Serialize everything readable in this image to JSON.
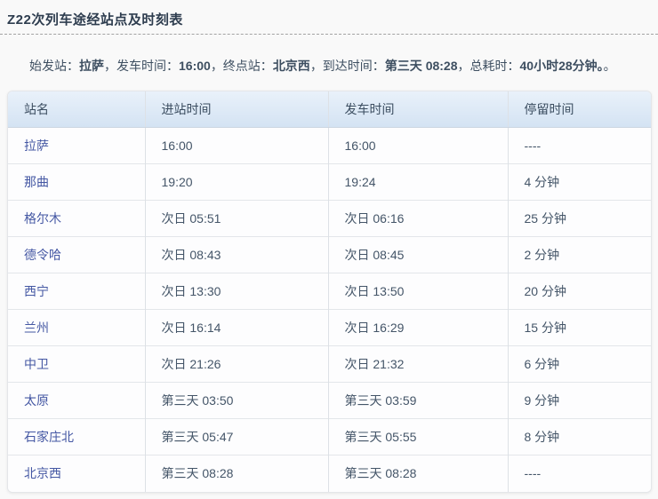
{
  "page": {
    "title": "Z22次列车途经站点及时刻表"
  },
  "summary": {
    "segments": [
      {
        "text": "始发站：",
        "bold": false
      },
      {
        "text": "拉萨",
        "bold": true
      },
      {
        "text": "，发车时间：",
        "bold": false
      },
      {
        "text": "16:00",
        "bold": true
      },
      {
        "text": "，终点站：",
        "bold": false
      },
      {
        "text": "北京西",
        "bold": true
      },
      {
        "text": "，到达时间：",
        "bold": false
      },
      {
        "text": "第三天 08:28",
        "bold": true
      },
      {
        "text": "，总耗时：",
        "bold": false
      },
      {
        "text": "40小时28分钟。",
        "bold": true
      },
      {
        "text": "。",
        "bold": false
      }
    ]
  },
  "table": {
    "columns": [
      "站名",
      "进站时间",
      "发车时间",
      "停留时间"
    ],
    "rows": [
      [
        "拉萨",
        "16:00",
        "16:00",
        "----"
      ],
      [
        "那曲",
        "19:20",
        "19:24",
        "4 分钟"
      ],
      [
        "格尔木",
        "次日 05:51",
        "次日 06:16",
        "25 分钟"
      ],
      [
        "德令哈",
        "次日 08:43",
        "次日 08:45",
        "2 分钟"
      ],
      [
        "西宁",
        "次日 13:30",
        "次日 13:50",
        "20 分钟"
      ],
      [
        "兰州",
        "次日 16:14",
        "次日 16:29",
        "15 分钟"
      ],
      [
        "中卫",
        "次日 21:26",
        "次日 21:32",
        "6 分钟"
      ],
      [
        "太原",
        "第三天 03:50",
        "第三天 03:59",
        "9 分钟"
      ],
      [
        "石家庄北",
        "第三天 05:47",
        "第三天 05:55",
        "8 分钟"
      ],
      [
        "北京西",
        "第三天 08:28",
        "第三天 08:28",
        "----"
      ]
    ]
  },
  "colors": {
    "page_background": "#f9f9f9",
    "title_text": "#2e3d4f",
    "summary_text": "#3e4f61",
    "header_background_top": "#e9f1fa",
    "header_background_bottom": "#d4e3f3",
    "header_text": "#3b4d60",
    "cell_text": "#44556e",
    "station_text": "#4457a3",
    "border": "#dde1e6"
  }
}
